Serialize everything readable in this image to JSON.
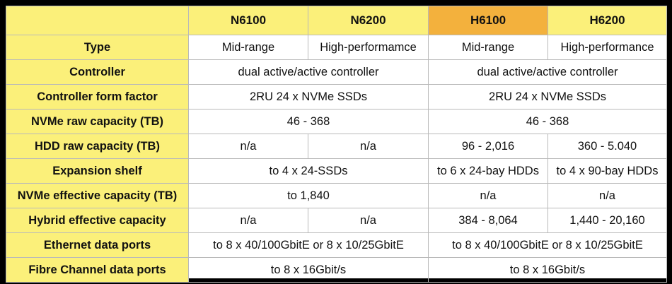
{
  "header": {
    "corner": "",
    "columns": [
      {
        "label": "N6100",
        "color": "#fbf07a"
      },
      {
        "label": "N6200",
        "color": "#fbf07a"
      },
      {
        "label": "H6100",
        "color": "#f3b13d"
      },
      {
        "label": "H6200",
        "color": "#fbf07a"
      }
    ]
  },
  "rows": [
    {
      "label": "Type",
      "cells": [
        {
          "text": "Mid-range",
          "span": 1
        },
        {
          "text": "High-performamce",
          "span": 1
        },
        {
          "text": "Mid-range",
          "span": 1
        },
        {
          "text": "High-performance",
          "span": 1
        }
      ]
    },
    {
      "label": "Controller",
      "cells": [
        {
          "text": "dual active/active controller",
          "span": 2
        },
        {
          "text": "dual active/active controller",
          "span": 2
        }
      ]
    },
    {
      "label": "Controller form factor",
      "cells": [
        {
          "text": "2RU 24 x NVMe SSDs",
          "span": 2
        },
        {
          "text": "2RU 24 x NVMe SSDs",
          "span": 2
        }
      ]
    },
    {
      "label": "NVMe raw capacity (TB)",
      "cells": [
        {
          "text": "46 - 368",
          "span": 2
        },
        {
          "text": "46 - 368",
          "span": 2
        }
      ]
    },
    {
      "label": "HDD raw capacity (TB)",
      "cells": [
        {
          "text": "n/a",
          "span": 1
        },
        {
          "text": "n/a",
          "span": 1
        },
        {
          "text": "96 - 2,016",
          "span": 1
        },
        {
          "text": "360 - 5.040",
          "span": 1
        }
      ]
    },
    {
      "label": "Expansion shelf",
      "cells": [
        {
          "text": "to 4 x 24-SSDs",
          "span": 2
        },
        {
          "text": "to 6 x 24-bay HDDs",
          "span": 1
        },
        {
          "text": "to 4 x 90-bay HDDs",
          "span": 1
        }
      ]
    },
    {
      "label": "NVMe effective capacity (TB)",
      "cells": [
        {
          "text": "to 1,840",
          "span": 2
        },
        {
          "text": "n/a",
          "span": 1
        },
        {
          "text": "n/a",
          "span": 1
        }
      ]
    },
    {
      "label": "Hybrid effective capacity",
      "cells": [
        {
          "text": "n/a",
          "span": 1
        },
        {
          "text": "n/a",
          "span": 1
        },
        {
          "text": "384 - 8,064",
          "span": 1
        },
        {
          "text": "1,440 - 20,160",
          "span": 1
        }
      ]
    },
    {
      "label": "Ethernet data ports",
      "cells": [
        {
          "text": "to 8 x 40/100GbitE or 8 x 10/25GbitE",
          "span": 2
        },
        {
          "text": "to 8 x 40/100GbitE or 8 x 10/25GbitE",
          "span": 2
        }
      ]
    },
    {
      "label": "Fibre Channel  data ports",
      "cells": [
        {
          "text": "to 8 x 16Gbit/s",
          "span": 2
        },
        {
          "text": "to 8 x 16Gbit/s",
          "span": 2
        }
      ]
    }
  ]
}
